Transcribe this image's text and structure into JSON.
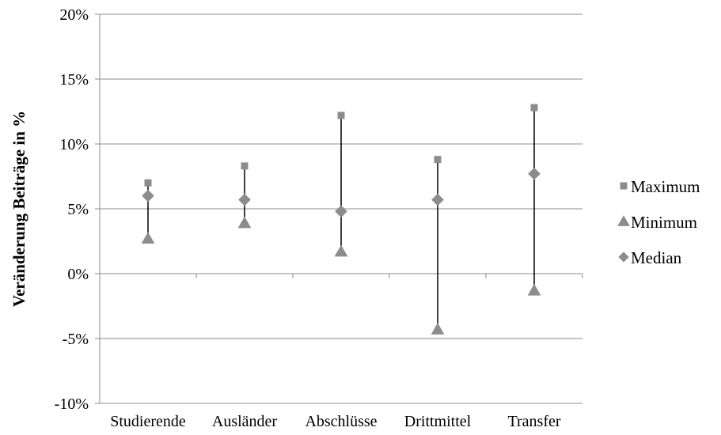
{
  "chart_data": {
    "type": "scatter",
    "ylabel": "Veränderung Beiträge in %",
    "xlabel": "",
    "categories": [
      "Studierende",
      "Ausländer",
      "Abschlüsse",
      "Drittmittel",
      "Transfer"
    ],
    "ylim": [
      -10,
      20
    ],
    "yticks": [
      -10,
      -5,
      0,
      5,
      10,
      15,
      20
    ],
    "ytick_labels": [
      "-10%",
      "-5%",
      "0%",
      "5%",
      "10%",
      "15%",
      "20%"
    ],
    "grid": true,
    "legend_position": "right",
    "series": [
      {
        "name": "Maximum",
        "marker": "square",
        "color": "#8c8c8c",
        "values": [
          7.0,
          8.3,
          12.2,
          8.8,
          12.8
        ]
      },
      {
        "name": "Minimum",
        "marker": "triangle",
        "color": "#8c8c8c",
        "values": [
          2.7,
          3.9,
          1.7,
          -4.3,
          -1.3
        ]
      },
      {
        "name": "Median",
        "marker": "diamond",
        "color": "#8c8c8c",
        "values": [
          6.0,
          5.7,
          4.8,
          5.7,
          7.7
        ]
      }
    ],
    "range_line_color": "#000000"
  }
}
